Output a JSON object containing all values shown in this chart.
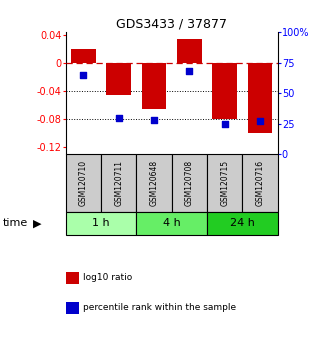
{
  "title": "GDS3433 / 37877",
  "samples": [
    "GSM120710",
    "GSM120711",
    "GSM120648",
    "GSM120708",
    "GSM120715",
    "GSM120716"
  ],
  "log10_ratio": [
    0.02,
    -0.045,
    -0.065,
    0.035,
    -0.08,
    -0.1
  ],
  "percentile_rank": [
    65,
    30,
    28,
    68,
    25,
    27
  ],
  "bar_color": "#cc0000",
  "dot_color": "#0000cc",
  "ylim_left": [
    -0.13,
    0.045
  ],
  "ylim_right": [
    0,
    100
  ],
  "yticks_left": [
    0.04,
    0.0,
    -0.04,
    -0.08,
    -0.12
  ],
  "yticks_right": [
    100,
    75,
    50,
    25,
    0
  ],
  "ytick_labels_left": [
    "0.04",
    "0",
    "-0.04",
    "-0.08",
    "-0.12"
  ],
  "ytick_labels_right": [
    "100%",
    "75",
    "50",
    "25",
    "0"
  ],
  "groups": [
    {
      "label": "1 h",
      "samples": [
        "GSM120710",
        "GSM120711"
      ],
      "color": "#aaffaa"
    },
    {
      "label": "4 h",
      "samples": [
        "GSM120648",
        "GSM120708"
      ],
      "color": "#66ee66"
    },
    {
      "label": "24 h",
      "samples": [
        "GSM120715",
        "GSM120716"
      ],
      "color": "#22cc22"
    }
  ],
  "legend_items": [
    {
      "label": "log10 ratio",
      "color": "#cc0000"
    },
    {
      "label": "percentile rank within the sample",
      "color": "#0000cc"
    }
  ],
  "hline_y": 0.0,
  "hline_color": "#cc0000",
  "dotted_lines": [
    -0.04,
    -0.08
  ],
  "bg_color": "#ffffff",
  "bar_width": 0.7,
  "time_label": "time",
  "sample_bg_color": "#cccccc",
  "sample_border_color": "#000000"
}
